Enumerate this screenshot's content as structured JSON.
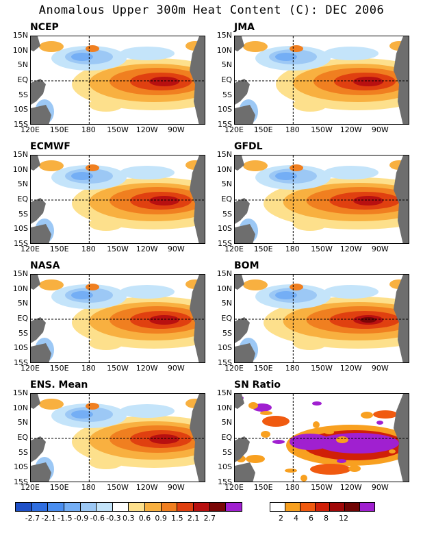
{
  "title": "Anomalous Upper 300m Heat Content (C): DEC 2006",
  "panels": [
    {
      "name": "NCEP",
      "pattern": "ncep"
    },
    {
      "name": "JMA",
      "pattern": "jma"
    },
    {
      "name": "ECMWF",
      "pattern": "ecmwf"
    },
    {
      "name": "GFDL",
      "pattern": "gfdl"
    },
    {
      "name": "NASA",
      "pattern": "nasa"
    },
    {
      "name": "BOM",
      "pattern": "bom"
    },
    {
      "name": "ENS. Mean",
      "pattern": "ens"
    },
    {
      "name": "SN Ratio",
      "pattern": "sn"
    }
  ],
  "y_tick_labels": [
    "15N",
    "10N",
    "5N",
    "EQ",
    "5S",
    "10S",
    "15S"
  ],
  "x_tick_labels": [
    "120E",
    "150E",
    "180",
    "150W",
    "120W",
    "90W"
  ],
  "colorbar_anomaly": {
    "labels": [
      "-2.7",
      "-2.1",
      "-1.5",
      "-0.9",
      "-0.6",
      "-0.3",
      "0.3",
      "0.6",
      "0.9",
      "1.5",
      "2.1",
      "2.7"
    ],
    "colors": [
      "#1e50c8",
      "#2f6ee0",
      "#4a8ef0",
      "#74aef5",
      "#9cc8f5",
      "#c4e4fa",
      "#ffffff",
      "#fde08c",
      "#f8b040",
      "#f07f20",
      "#e04010",
      "#b81010",
      "#7a0606",
      "#a020d0"
    ]
  },
  "colorbar_sn": {
    "labels": [
      "2",
      "4",
      "6",
      "8",
      "12"
    ],
    "colors": [
      "#ffffff",
      "#f8a020",
      "#f05a10",
      "#d02008",
      "#a00808",
      "#700404",
      "#a020d0"
    ]
  },
  "land_color": "#6e6e6e"
}
